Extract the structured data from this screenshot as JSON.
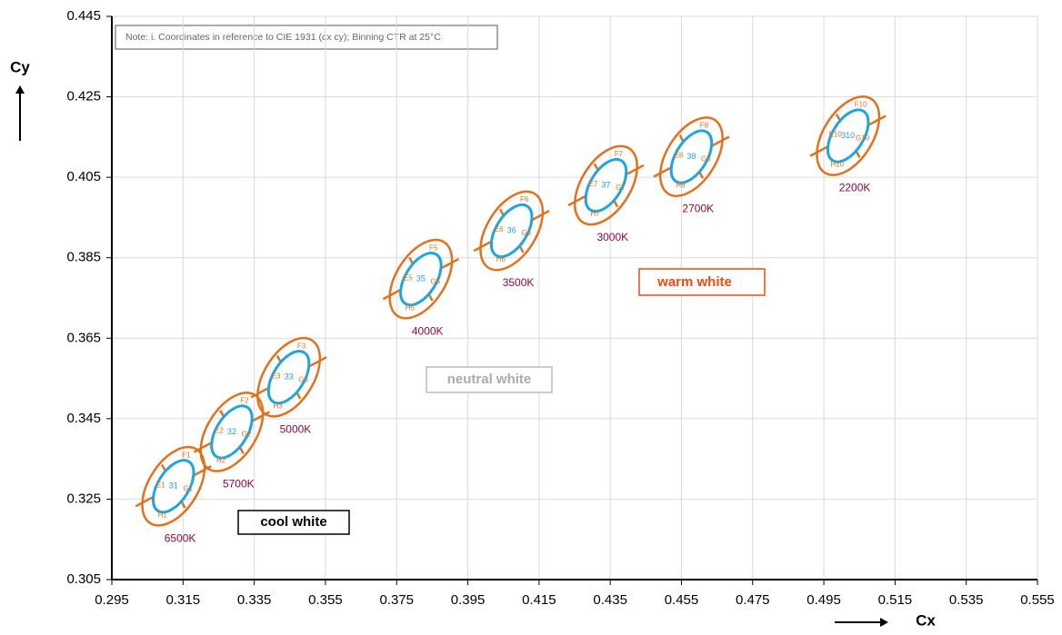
{
  "chart_data": {
    "type": "bin-map",
    "note": "Note: i. Coordinates in reference to CIE 1931 (cx cy); Binning CTR at 25°C",
    "x_label": "Cx",
    "y_label": "Cy",
    "xlim": [
      0.295,
      0.555
    ],
    "ylim": [
      0.305,
      0.445
    ],
    "xticks": [
      0.295,
      0.315,
      0.335,
      0.355,
      0.375,
      0.395,
      0.415,
      0.435,
      0.455,
      0.475,
      0.495,
      0.515,
      0.535,
      0.555
    ],
    "yticks": [
      0.305,
      0.325,
      0.345,
      0.365,
      0.385,
      0.405,
      0.425,
      0.445
    ],
    "grid": true,
    "outer_color": "#e2711d",
    "inner_color": "#1ea6dc",
    "cct_color": "#8b0a3a",
    "bins": [
      {
        "name": "31",
        "x": 0.3123,
        "y": 0.3282,
        "cct": "6500K",
        "quadrants": [
          "E1",
          "F1",
          "G1",
          "H1"
        ]
      },
      {
        "name": "32",
        "x": 0.3287,
        "y": 0.3417,
        "cct": "5700K",
        "quadrants": [
          "E2",
          "F2",
          "G2",
          "H2"
        ]
      },
      {
        "name": "33",
        "x": 0.3447,
        "y": 0.3553,
        "cct": "5000K",
        "quadrants": [
          "E3",
          "F3",
          "G3",
          "H3"
        ]
      },
      {
        "name": "35",
        "x": 0.3818,
        "y": 0.3797,
        "cct": "4000K",
        "quadrants": [
          "E5",
          "F5",
          "G5",
          "H5"
        ]
      },
      {
        "name": "36",
        "x": 0.4073,
        "y": 0.3917,
        "cct": "3500K",
        "quadrants": [
          "E6",
          "F6",
          "G6",
          "H6"
        ]
      },
      {
        "name": "37",
        "x": 0.4338,
        "y": 0.403,
        "cct": "3000K",
        "quadrants": [
          "E7",
          "F7",
          "G7",
          "H7"
        ]
      },
      {
        "name": "38",
        "x": 0.4578,
        "y": 0.4101,
        "cct": "2700K",
        "quadrants": [
          "E8",
          "F8",
          "G8",
          "H8"
        ]
      },
      {
        "name": "310",
        "x": 0.5018,
        "y": 0.4153,
        "cct": "2200K",
        "quadrants": [
          "E10",
          "F10",
          "G10",
          "H10"
        ]
      }
    ],
    "annotations": [
      "cool white",
      "neutral white",
      "warm white"
    ]
  }
}
